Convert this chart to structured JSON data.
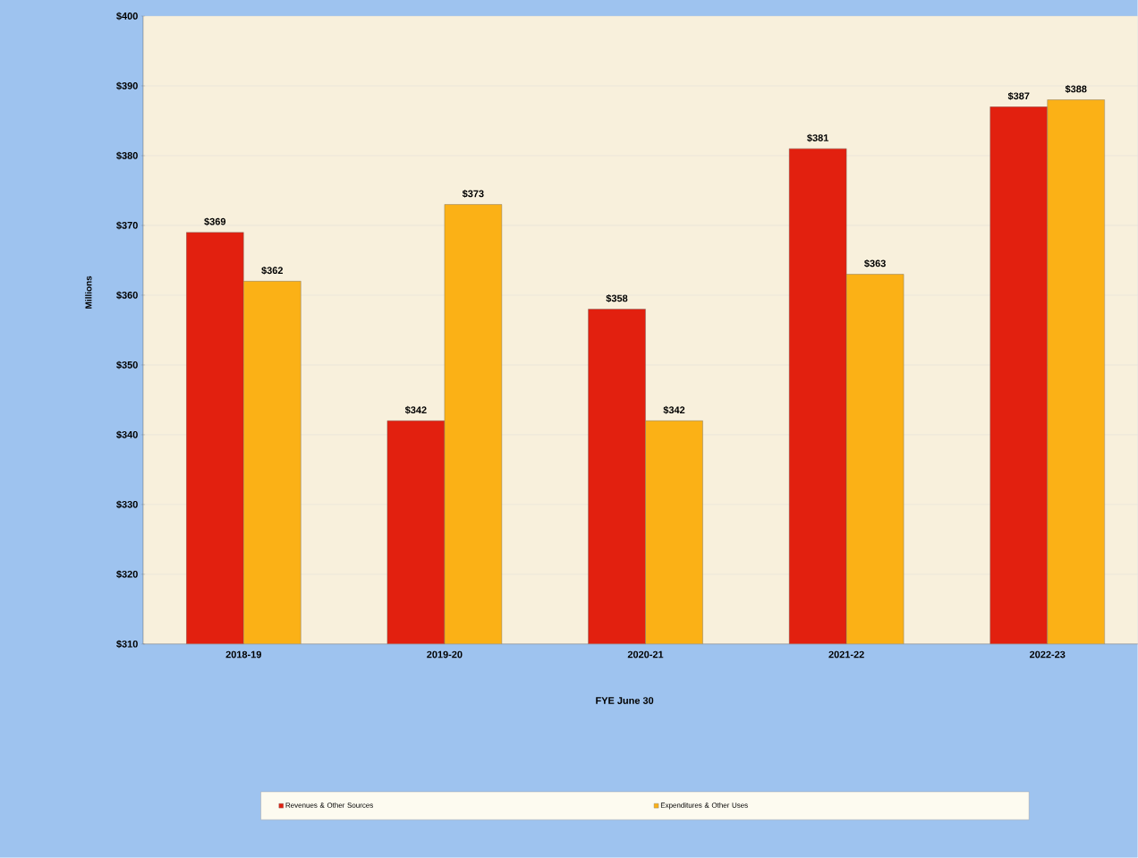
{
  "chart_data": {
    "type": "bar",
    "xlabel": "FYE June 30",
    "ylabel": "Millions",
    "categories": [
      "2018-19",
      "2019-20",
      "2020-21",
      "2021-22",
      "2022-23"
    ],
    "series": [
      {
        "name": "Revenues & Other Sources",
        "color": "#e2200f",
        "values": [
          369,
          342,
          358,
          381,
          387
        ],
        "value_labels": [
          "$369",
          "$342",
          "$358",
          "$381",
          "$387"
        ]
      },
      {
        "name": "Expenditures & Other Uses",
        "color": "#fbb116",
        "values": [
          362,
          373,
          342,
          363,
          388
        ],
        "value_labels": [
          "$362",
          "$373",
          "$342",
          "$363",
          "$388"
        ]
      }
    ],
    "ylim": [
      310,
      400
    ],
    "yticks": [
      {
        "value": 310,
        "label": "$310"
      },
      {
        "value": 320,
        "label": "$320"
      },
      {
        "value": 330,
        "label": "$330"
      },
      {
        "value": 340,
        "label": "$340"
      },
      {
        "value": 350,
        "label": "$350"
      },
      {
        "value": 360,
        "label": "$360"
      },
      {
        "value": 370,
        "label": "$370"
      },
      {
        "value": 380,
        "label": "$380"
      },
      {
        "value": 390,
        "label": "$390"
      },
      {
        "value": 400,
        "label": "$400"
      }
    ],
    "grid": "y",
    "legend": "bottom"
  }
}
